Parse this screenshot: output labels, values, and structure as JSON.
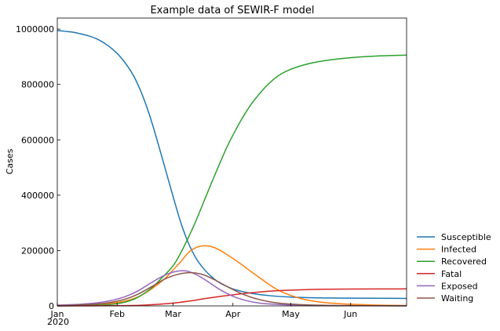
{
  "chart_data": {
    "type": "line",
    "title": "Example data of SEWIR-F model",
    "xlabel": "",
    "ylabel": "Cases",
    "x_year_label": "2020",
    "x_ticks": [
      {
        "label": "Jan",
        "date": "2020-01-01"
      },
      {
        "label": "Feb",
        "date": "2020-02-01"
      },
      {
        "label": "Mar",
        "date": "2020-03-01"
      },
      {
        "label": "Apr",
        "date": "2020-04-01"
      },
      {
        "label": "May",
        "date": "2020-05-01"
      },
      {
        "label": "Jun",
        "date": "2020-06-01"
      }
    ],
    "xlim": [
      "2020-01-01",
      "2020-06-30"
    ],
    "y_ticks": [
      0,
      200000,
      400000,
      600000,
      800000,
      1000000
    ],
    "ylim": [
      0,
      1040000
    ],
    "grid": false,
    "legend_position": "outside-right-bottom",
    "series": [
      {
        "name": "Susceptible",
        "color": "#1f77b4",
        "points": [
          [
            "2020-01-01",
            995000
          ],
          [
            "2020-01-05",
            992000
          ],
          [
            "2020-01-09",
            989000
          ],
          [
            "2020-01-13",
            983000
          ],
          [
            "2020-01-17",
            976000
          ],
          [
            "2020-01-21",
            966000
          ],
          [
            "2020-01-25",
            951000
          ],
          [
            "2020-01-29",
            931000
          ],
          [
            "2020-02-02",
            905000
          ],
          [
            "2020-02-06",
            870000
          ],
          [
            "2020-02-10",
            825000
          ],
          [
            "2020-02-14",
            763000
          ],
          [
            "2020-02-18",
            685000
          ],
          [
            "2020-02-22",
            592000
          ],
          [
            "2020-02-26",
            494000
          ],
          [
            "2020-03-01",
            395000
          ],
          [
            "2020-03-05",
            301000
          ],
          [
            "2020-03-09",
            226000
          ],
          [
            "2020-03-13",
            171000
          ],
          [
            "2020-03-17",
            133000
          ],
          [
            "2020-03-21",
            105000
          ],
          [
            "2020-03-25",
            84000
          ],
          [
            "2020-03-29",
            70000
          ],
          [
            "2020-04-02",
            59000
          ],
          [
            "2020-04-10",
            46000
          ],
          [
            "2020-04-20",
            37000
          ],
          [
            "2020-05-01",
            32000
          ],
          [
            "2020-05-15",
            29000
          ],
          [
            "2020-06-01",
            28000
          ],
          [
            "2020-06-30",
            27000
          ]
        ]
      },
      {
        "name": "Infected",
        "color": "#ff7f0e",
        "points": [
          [
            "2020-01-01",
            2000
          ],
          [
            "2020-01-10",
            3000
          ],
          [
            "2020-01-20",
            5000
          ],
          [
            "2020-01-28",
            9000
          ],
          [
            "2020-02-05",
            17000
          ],
          [
            "2020-02-12",
            33000
          ],
          [
            "2020-02-19",
            62000
          ],
          [
            "2020-02-26",
            100000
          ],
          [
            "2020-03-01",
            130000
          ],
          [
            "2020-03-05",
            160000
          ],
          [
            "2020-03-09",
            193000
          ],
          [
            "2020-03-13",
            211000
          ],
          [
            "2020-03-17",
            217000
          ],
          [
            "2020-03-21",
            214000
          ],
          [
            "2020-03-25",
            202000
          ],
          [
            "2020-03-29",
            185000
          ],
          [
            "2020-04-02",
            167000
          ],
          [
            "2020-04-06",
            147000
          ],
          [
            "2020-04-10",
            126000
          ],
          [
            "2020-04-14",
            106000
          ],
          [
            "2020-04-18",
            86000
          ],
          [
            "2020-04-22",
            67000
          ],
          [
            "2020-04-26",
            52000
          ],
          [
            "2020-05-01",
            38000
          ],
          [
            "2020-05-06",
            27000
          ],
          [
            "2020-05-12",
            18000
          ],
          [
            "2020-05-20",
            11000
          ],
          [
            "2020-06-01",
            6000
          ],
          [
            "2020-06-15",
            3000
          ],
          [
            "2020-06-30",
            1500
          ]
        ]
      },
      {
        "name": "Recovered",
        "color": "#2ca02c",
        "points": [
          [
            "2020-01-01",
            0
          ],
          [
            "2020-01-20",
            2000
          ],
          [
            "2020-02-01",
            8000
          ],
          [
            "2020-02-10",
            25000
          ],
          [
            "2020-02-18",
            60000
          ],
          [
            "2020-02-24",
            100000
          ],
          [
            "2020-03-01",
            145000
          ],
          [
            "2020-03-05",
            192000
          ],
          [
            "2020-03-09",
            248000
          ],
          [
            "2020-03-13",
            310000
          ],
          [
            "2020-03-17",
            378000
          ],
          [
            "2020-03-21",
            446000
          ],
          [
            "2020-03-25",
            512000
          ],
          [
            "2020-03-29",
            575000
          ],
          [
            "2020-04-02",
            630000
          ],
          [
            "2020-04-06",
            680000
          ],
          [
            "2020-04-10",
            724000
          ],
          [
            "2020-04-14",
            760000
          ],
          [
            "2020-04-18",
            792000
          ],
          [
            "2020-04-22",
            818000
          ],
          [
            "2020-04-26",
            838000
          ],
          [
            "2020-05-01",
            855000
          ],
          [
            "2020-05-08",
            871000
          ],
          [
            "2020-05-15",
            882000
          ],
          [
            "2020-05-25",
            892000
          ],
          [
            "2020-06-05",
            899000
          ],
          [
            "2020-06-15",
            903000
          ],
          [
            "2020-06-30",
            906000
          ]
        ]
      },
      {
        "name": "Fatal",
        "color": "#d62728",
        "points": [
          [
            "2020-01-01",
            0
          ],
          [
            "2020-02-01",
            1000
          ],
          [
            "2020-02-15",
            3000
          ],
          [
            "2020-03-01",
            10000
          ],
          [
            "2020-03-10",
            18000
          ],
          [
            "2020-03-20",
            29000
          ],
          [
            "2020-04-01",
            40000
          ],
          [
            "2020-04-10",
            47000
          ],
          [
            "2020-04-20",
            53000
          ],
          [
            "2020-05-01",
            57000
          ],
          [
            "2020-05-15",
            60000
          ],
          [
            "2020-06-01",
            61000
          ],
          [
            "2020-06-30",
            61500
          ]
        ]
      },
      {
        "name": "Exposed",
        "color": "#9467bd",
        "points": [
          [
            "2020-01-01",
            3000
          ],
          [
            "2020-01-10",
            5000
          ],
          [
            "2020-01-20",
            10000
          ],
          [
            "2020-01-28",
            18000
          ],
          [
            "2020-02-05",
            33000
          ],
          [
            "2020-02-12",
            55000
          ],
          [
            "2020-02-19",
            85000
          ],
          [
            "2020-02-26",
            112000
          ],
          [
            "2020-03-03",
            125000
          ],
          [
            "2020-03-08",
            126000
          ],
          [
            "2020-03-13",
            113000
          ],
          [
            "2020-03-19",
            88000
          ],
          [
            "2020-03-25",
            60000
          ],
          [
            "2020-04-01",
            35000
          ],
          [
            "2020-04-08",
            19000
          ],
          [
            "2020-04-15",
            10000
          ],
          [
            "2020-04-25",
            5000
          ],
          [
            "2020-05-05",
            2500
          ],
          [
            "2020-05-20",
            1000
          ],
          [
            "2020-06-30",
            300
          ]
        ]
      },
      {
        "name": "Waiting",
        "color": "#8c564b",
        "points": [
          [
            "2020-01-01",
            1000
          ],
          [
            "2020-01-10",
            3000
          ],
          [
            "2020-01-20",
            6000
          ],
          [
            "2020-01-28",
            12000
          ],
          [
            "2020-02-05",
            24000
          ],
          [
            "2020-02-12",
            43000
          ],
          [
            "2020-02-19",
            70000
          ],
          [
            "2020-02-26",
            98000
          ],
          [
            "2020-03-04",
            115000
          ],
          [
            "2020-03-10",
            120000
          ],
          [
            "2020-03-16",
            114000
          ],
          [
            "2020-03-22",
            96000
          ],
          [
            "2020-03-29",
            70000
          ],
          [
            "2020-04-05",
            46000
          ],
          [
            "2020-04-12",
            28000
          ],
          [
            "2020-04-20",
            15000
          ],
          [
            "2020-04-28",
            8000
          ],
          [
            "2020-05-10",
            3500
          ],
          [
            "2020-05-25",
            1500
          ],
          [
            "2020-06-30",
            400
          ]
        ]
      }
    ]
  }
}
